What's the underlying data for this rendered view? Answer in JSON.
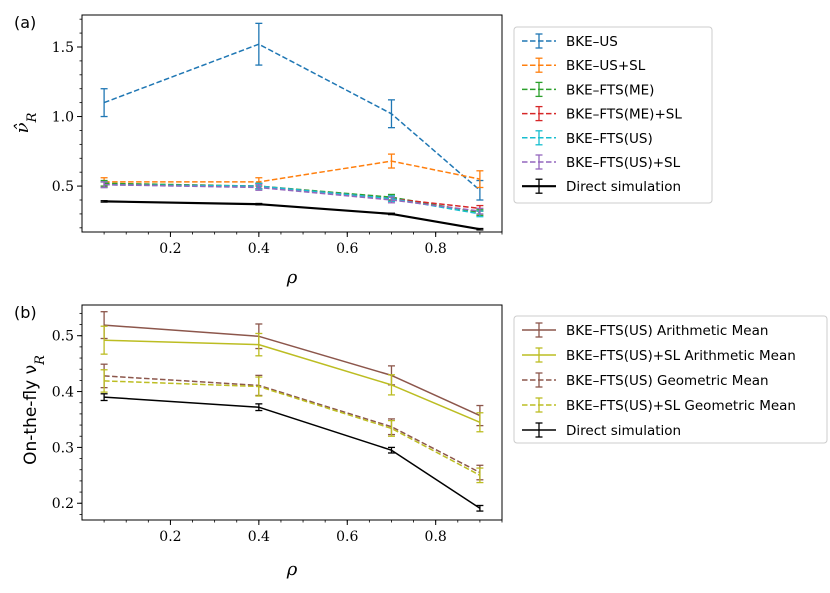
{
  "chart_data": [
    {
      "type": "line",
      "panel_label": "(a)",
      "xlabel": "ρ",
      "ylabel_base": "ν̂",
      "ylabel_sub": "R",
      "xlim": [
        0.0,
        0.95
      ],
      "ylim": [
        0.17,
        1.73
      ],
      "xticks": [
        "0.2",
        "0.4",
        "0.6",
        "0.8"
      ],
      "xtick_values": [
        0.2,
        0.4,
        0.6,
        0.8
      ],
      "yticks": [
        "0.5",
        "1.0",
        "1.5"
      ],
      "ytick_values": [
        0.5,
        1.0,
        1.5
      ],
      "x": [
        0.05,
        0.4,
        0.7,
        0.9
      ],
      "series": [
        {
          "name": "BKE–US",
          "color": "#1f77b4",
          "dash": true,
          "lw": 1.5,
          "values": [
            1.1,
            1.52,
            1.02,
            0.47
          ],
          "err": [
            0.1,
            0.15,
            0.1,
            0.07
          ]
        },
        {
          "name": "BKE–US+SL",
          "color": "#ff7f0e",
          "dash": true,
          "lw": 1.5,
          "values": [
            0.53,
            0.53,
            0.68,
            0.55
          ],
          "err": [
            0.03,
            0.03,
            0.05,
            0.06
          ]
        },
        {
          "name": "BKE–FTS(ME)",
          "color": "#2ca02c",
          "dash": true,
          "lw": 1.5,
          "values": [
            0.52,
            0.5,
            0.42,
            0.31
          ],
          "err": [
            0.02,
            0.02,
            0.02,
            0.02
          ]
        },
        {
          "name": "BKE–FTS(ME)+SL",
          "color": "#d62728",
          "dash": true,
          "lw": 1.5,
          "values": [
            0.51,
            0.5,
            0.41,
            0.34
          ],
          "err": [
            0.02,
            0.02,
            0.02,
            0.02
          ]
        },
        {
          "name": "BKE–FTS(US)",
          "color": "#17becf",
          "dash": true,
          "lw": 1.5,
          "values": [
            0.51,
            0.5,
            0.41,
            0.3
          ],
          "err": [
            0.02,
            0.02,
            0.02,
            0.02
          ]
        },
        {
          "name": "BKE–FTS(US)+SL",
          "color": "#9467bd",
          "dash": true,
          "lw": 1.5,
          "values": [
            0.51,
            0.49,
            0.4,
            0.32
          ],
          "err": [
            0.02,
            0.02,
            0.02,
            0.02
          ]
        },
        {
          "name": "Direct simulation",
          "color": "#000000",
          "dash": false,
          "lw": 2.2,
          "values": [
            0.39,
            0.37,
            0.3,
            0.19
          ],
          "err": [
            0.005,
            0.005,
            0.005,
            0.005
          ]
        }
      ]
    },
    {
      "type": "line",
      "panel_label": "(b)",
      "xlabel": "ρ",
      "ylabel_base": "On-the-fly ν",
      "ylabel_sub": "R",
      "xlim": [
        0.0,
        0.95
      ],
      "ylim": [
        0.17,
        0.555
      ],
      "xticks": [
        "0.2",
        "0.4",
        "0.6",
        "0.8"
      ],
      "xtick_values": [
        0.2,
        0.4,
        0.6,
        0.8
      ],
      "yticks": [
        "0.2",
        "0.3",
        "0.4",
        "0.5"
      ],
      "ytick_values": [
        0.2,
        0.3,
        0.4,
        0.5
      ],
      "x": [
        0.05,
        0.4,
        0.7,
        0.9
      ],
      "series": [
        {
          "name": "BKE–FTS(US) Arithmetic Mean",
          "color": "#8c564b",
          "dash": false,
          "lw": 1.5,
          "values": [
            0.519,
            0.499,
            0.429,
            0.357
          ],
          "err": [
            0.024,
            0.022,
            0.017,
            0.018
          ]
        },
        {
          "name": "BKE–FTS(US)+SL Arithmetic Mean",
          "color": "#bcbd22",
          "dash": false,
          "lw": 1.5,
          "values": [
            0.492,
            0.484,
            0.412,
            0.345
          ],
          "err": [
            0.025,
            0.02,
            0.018,
            0.017
          ]
        },
        {
          "name": "BKE–FTS(US) Geometric Mean",
          "color": "#8c564b",
          "dash": true,
          "lw": 1.5,
          "values": [
            0.428,
            0.411,
            0.337,
            0.255
          ],
          "err": [
            0.021,
            0.018,
            0.014,
            0.013
          ]
        },
        {
          "name": "BKE–FTS(US)+SL Geometric Mean",
          "color": "#bcbd22",
          "dash": true,
          "lw": 1.5,
          "values": [
            0.419,
            0.409,
            0.334,
            0.25
          ],
          "err": [
            0.02,
            0.017,
            0.014,
            0.013
          ]
        },
        {
          "name": "Direct simulation",
          "color": "#000000",
          "dash": false,
          "lw": 1.5,
          "values": [
            0.39,
            0.372,
            0.295,
            0.191
          ],
          "err": [
            0.006,
            0.006,
            0.005,
            0.005
          ]
        }
      ]
    }
  ]
}
